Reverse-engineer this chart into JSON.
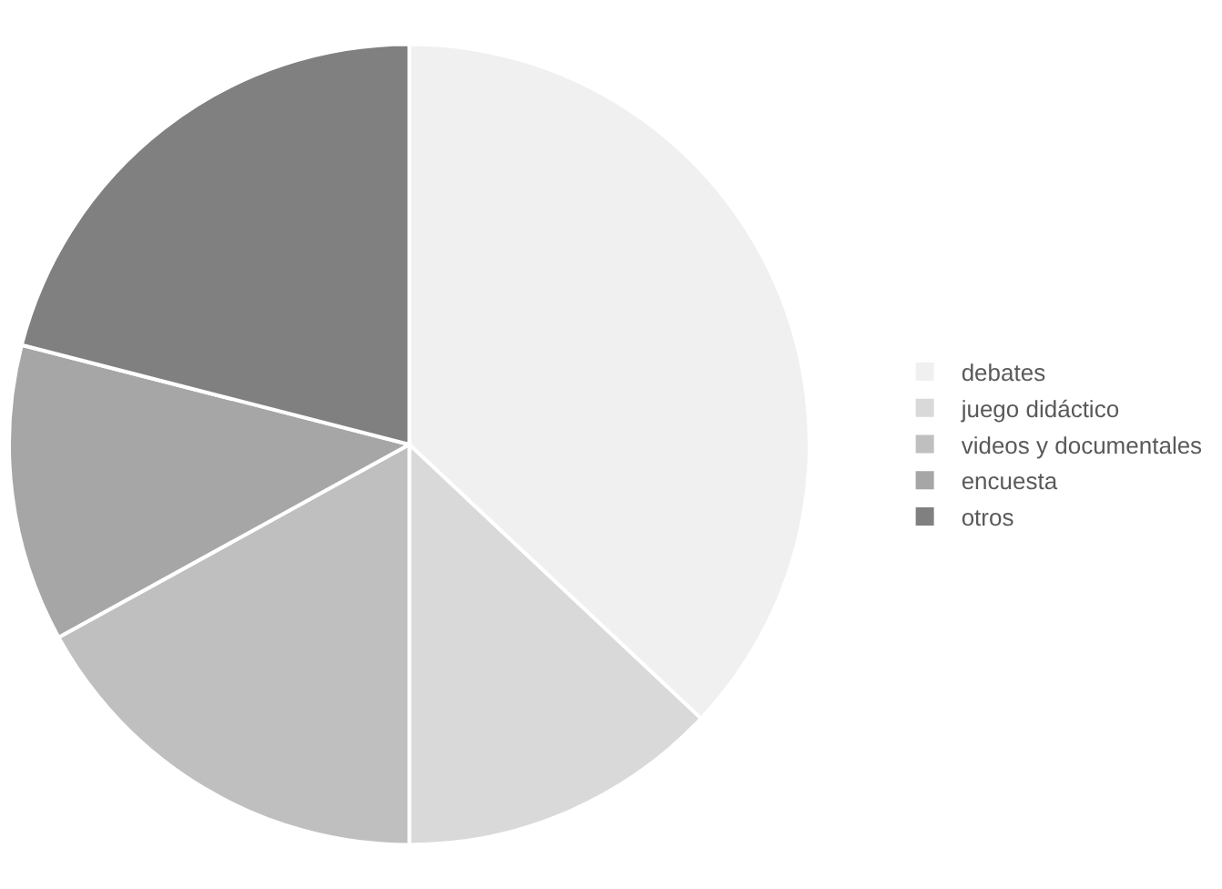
{
  "chart_data": {
    "type": "pie",
    "categories": [
      "debates",
      "juego didáctico",
      "videos y documentales",
      "encuesta",
      "otros"
    ],
    "values": [
      37,
      13,
      17,
      12,
      21
    ],
    "colors": [
      "#f0f0f0",
      "#d9d9d9",
      "#bfbfbf",
      "#a6a6a6",
      "#808080"
    ],
    "legend": "right"
  }
}
